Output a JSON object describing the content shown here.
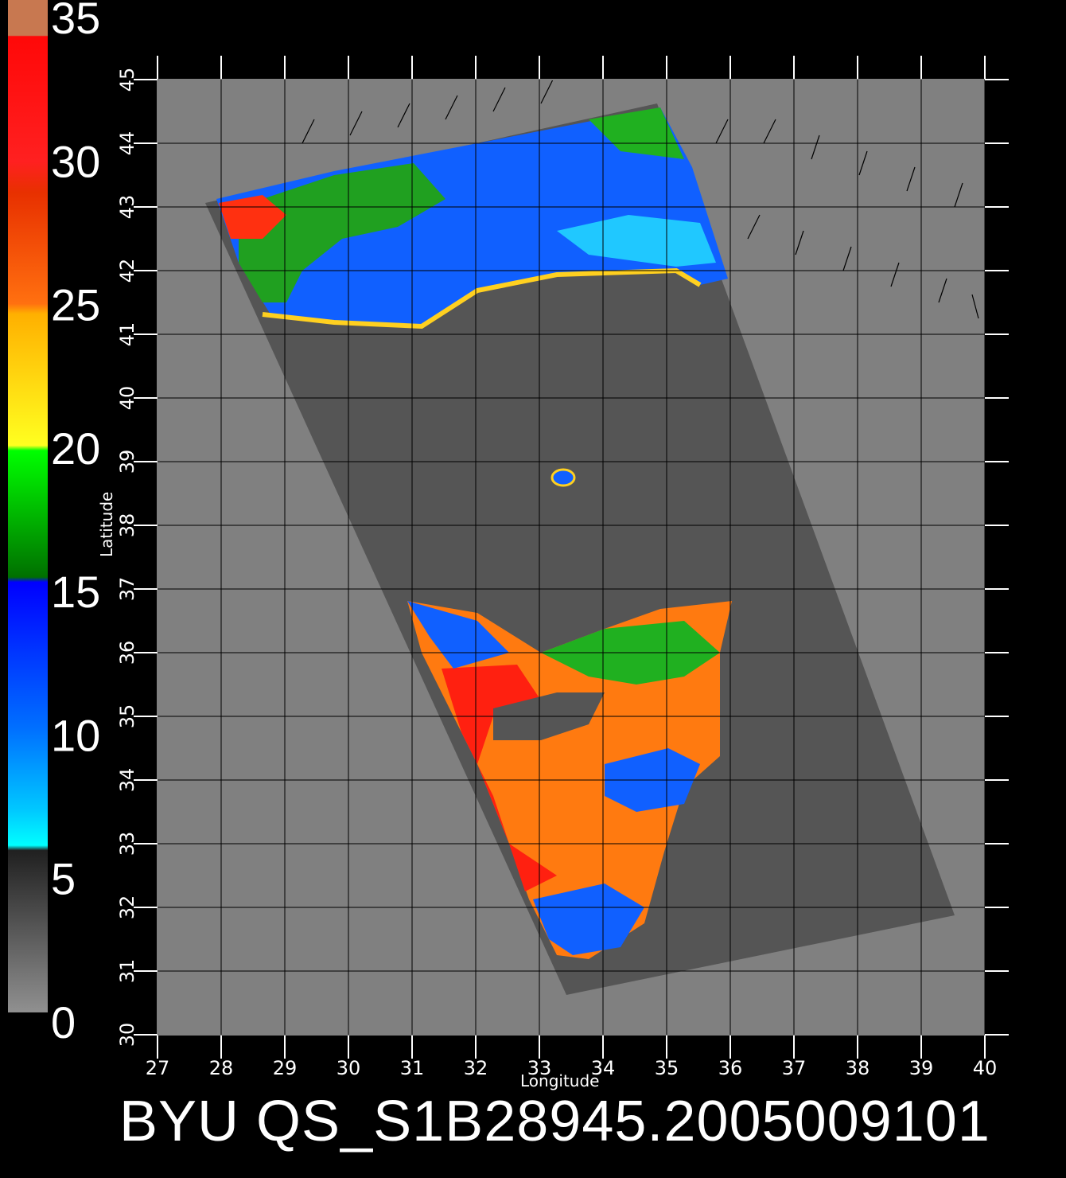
{
  "footer": {
    "title": "BYU  QS_S1B28945.2005009101"
  },
  "axes": {
    "x_label": "Longitude",
    "y_label": "Latitude",
    "lon_ticks": [
      "27",
      "28",
      "29",
      "30",
      "31",
      "32",
      "33",
      "34",
      "35",
      "36",
      "37",
      "38",
      "39",
      "40"
    ],
    "lat_ticks": [
      "30",
      "31",
      "32",
      "33",
      "34",
      "35",
      "36",
      "37",
      "38",
      "39",
      "40",
      "41",
      "42",
      "43",
      "44",
      "45"
    ]
  },
  "colorbar": {
    "labels": [
      "35",
      "30",
      "25",
      "20",
      "15",
      "10",
      "5",
      "0"
    ],
    "colors": {
      "c35": "#c87850",
      "red": "#ff1010",
      "orange": "#ff8010",
      "yellow": "#ffd010",
      "green": "#00b000",
      "blue": "#0040ff",
      "cyan": "#00e8ff",
      "gray_dark": "#383838",
      "gray_light": "#808080"
    }
  },
  "map": {
    "background": "#808080",
    "swath": "#555555",
    "land": "#555555",
    "lon_range": [
      27,
      40
    ],
    "lat_range": [
      30,
      45
    ]
  }
}
